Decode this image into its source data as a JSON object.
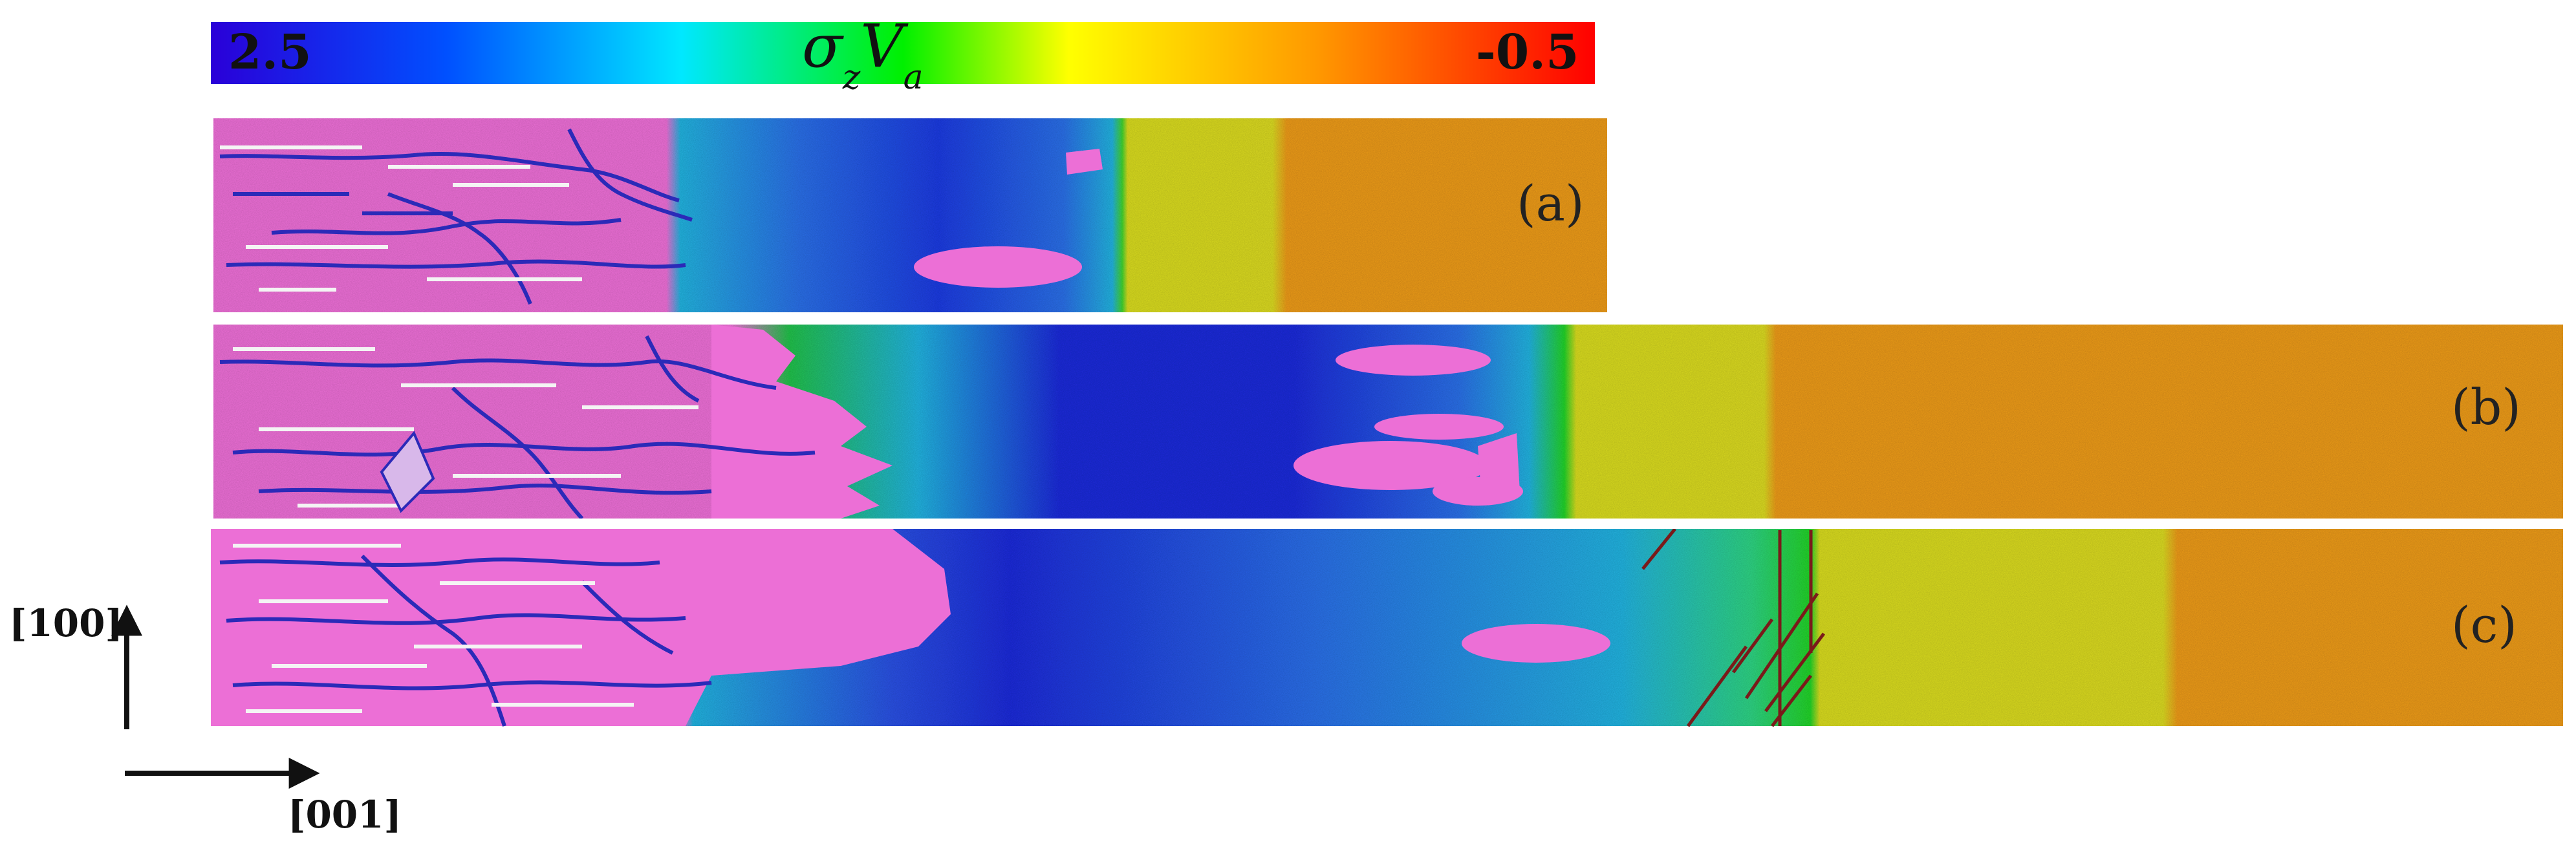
{
  "colorbar": {
    "max_label": "2.5",
    "min_label": "-0.5",
    "quantity_symbol": "σ",
    "quantity_sub1": "z",
    "quantity_mid": "V",
    "quantity_sub2": "a",
    "colors": [
      "#2a00d8",
      "#0050ff",
      "#00e8ff",
      "#00f000",
      "#ffff00",
      "#ff9800",
      "#ff0000"
    ]
  },
  "panels": [
    {
      "tag": "(a)"
    },
    {
      "tag": "(b)"
    },
    {
      "tag": "(c)"
    }
  ],
  "colors": {
    "background_phase": "#ec6fd6",
    "deep_blue": "#1c2bd8",
    "mid_blue": "#2a6fe6",
    "cyan": "#22b2de",
    "green": "#22d228",
    "yellow_green": "#d7da1e",
    "orange": "#eb9a1a",
    "defect_line": "#2b2ab8",
    "white_streak": "#f4f4f4",
    "dark_red_line": "#7a1a1a"
  },
  "axes": {
    "vertical_label": "[100]",
    "horizontal_label": "[001]"
  }
}
